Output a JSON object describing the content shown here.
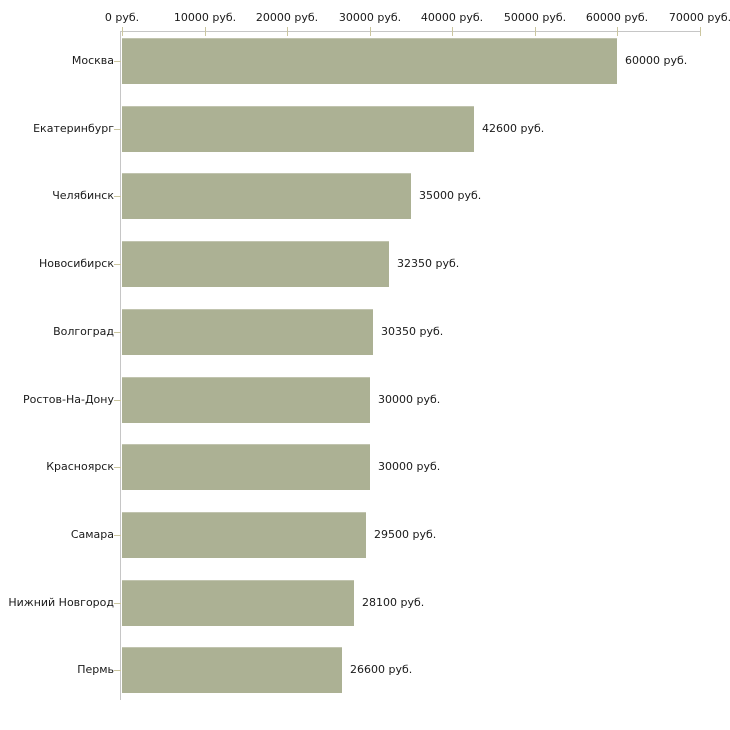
{
  "chart_data": {
    "type": "bar",
    "orientation": "horizontal",
    "title": "",
    "xlabel": "",
    "ylabel": "",
    "unit": "руб.",
    "categories": [
      "Москва",
      "Екатеринбург",
      "Челябинск",
      "Новосибирск",
      "Волгоград",
      "Ростов-На-Дону",
      "Красноярск",
      "Самара",
      "Нижний Новгород",
      "Пермь"
    ],
    "values": [
      60000,
      42600,
      35000,
      32350,
      30350,
      30000,
      30000,
      29500,
      28100,
      26600
    ],
    "value_labels": [
      "60000 руб.",
      "42600 руб.",
      "35000 руб.",
      "32350 руб.",
      "30350 руб.",
      "30000 руб.",
      "30000 руб.",
      "29500 руб.",
      "28100 руб.",
      "26600 руб."
    ],
    "xlim": [
      0,
      70000
    ],
    "x_ticks": [
      0,
      10000,
      20000,
      30000,
      40000,
      50000,
      60000,
      70000
    ],
    "x_tick_labels": [
      "0 руб.",
      "10000 руб.",
      "20000 руб.",
      "30000 руб.",
      "40000 руб.",
      "50000 руб.",
      "60000 руб.",
      "70000 руб."
    ],
    "grid": false,
    "legend": false,
    "axis_position": "top",
    "colors": {
      "bar_fill": "#acb194",
      "axis_line": "#c6c6c6",
      "tick_mark": "#cbc69f",
      "text": "#1a1a1a",
      "background": "#ffffff"
    }
  }
}
